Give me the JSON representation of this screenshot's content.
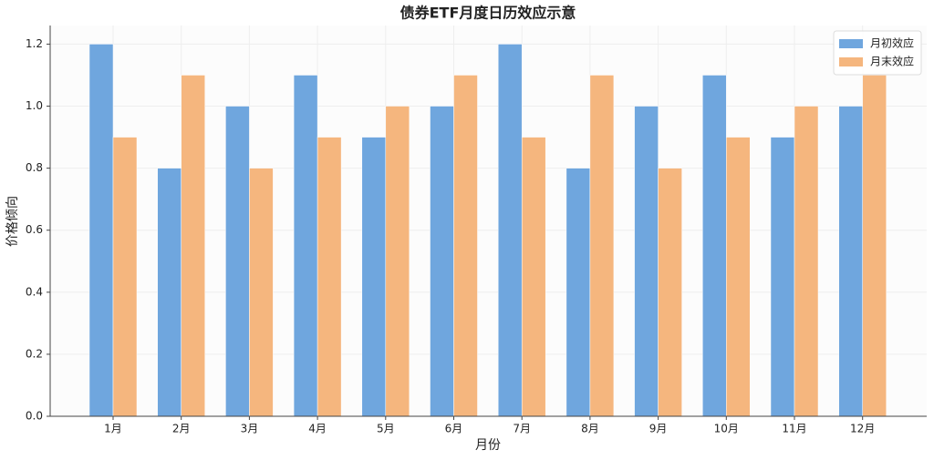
{
  "chart_data": {
    "type": "bar",
    "title": "债券ETF月度日历效应示意",
    "x_label": "月份",
    "y_label": "价格倾向",
    "categories": [
      "1月",
      "2月",
      "3月",
      "4月",
      "5月",
      "6月",
      "7月",
      "8月",
      "9月",
      "10月",
      "11月",
      "12月"
    ],
    "series": [
      {
        "name": "月初效应",
        "color": "#6fa6de",
        "values": [
          1.2,
          0.8,
          1.0,
          1.1,
          0.9,
          1.0,
          1.2,
          0.8,
          1.0,
          1.1,
          0.9,
          1.0
        ]
      },
      {
        "name": "月末效应",
        "color": "#f5b67e",
        "values": [
          0.9,
          1.1,
          0.8,
          0.9,
          1.0,
          1.1,
          0.9,
          1.1,
          0.8,
          0.9,
          1.0,
          1.1
        ]
      }
    ],
    "ylim": [
      0,
      1.26
    ],
    "yticks": [
      {
        "value": 0,
        "label": "0.0"
      },
      0.2,
      0.4,
      0.6,
      0.8,
      {
        "value": 1,
        "label": "1.0"
      },
      1.2
    ],
    "grid": true,
    "legend": "upper-right"
  }
}
